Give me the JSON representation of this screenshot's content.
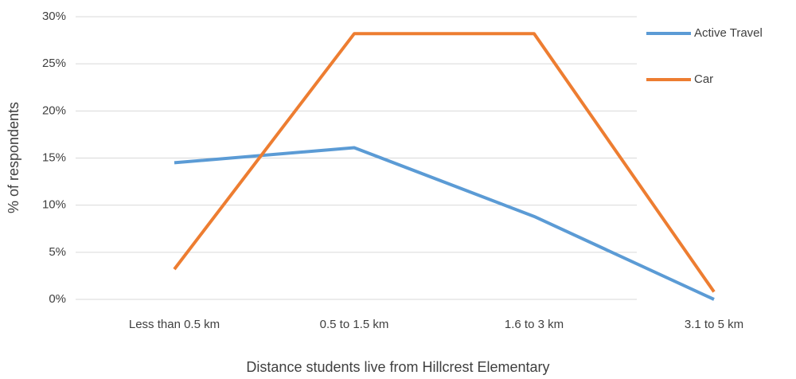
{
  "chart_data": {
    "type": "line",
    "xlabel": "Distance students live from Hillcrest Elementary",
    "ylabel": "% of respondents",
    "categories": [
      "Less than 0.5 km",
      "0.5 to 1.5 km",
      "1.6 to 3 km",
      "3.1 to 5 km"
    ],
    "series": [
      {
        "name": "Active Travel",
        "color": "#5b9bd5",
        "values": [
          14.5,
          16.1,
          8.8,
          0
        ]
      },
      {
        "name": "Car",
        "color": "#ed7d31",
        "values": [
          3.2,
          28.2,
          28.2,
          0.8
        ]
      }
    ],
    "ylim": [
      0,
      30
    ],
    "yticks": [
      {
        "value": 0,
        "label": "0%"
      },
      {
        "value": 5,
        "label": "5%"
      },
      {
        "value": 10,
        "label": "10%"
      },
      {
        "value": 15,
        "label": "15%"
      },
      {
        "value": 20,
        "label": "20%"
      },
      {
        "value": 25,
        "label": "25%"
      },
      {
        "value": 30,
        "label": "30%"
      }
    ],
    "grid": true,
    "legend": "right"
  }
}
